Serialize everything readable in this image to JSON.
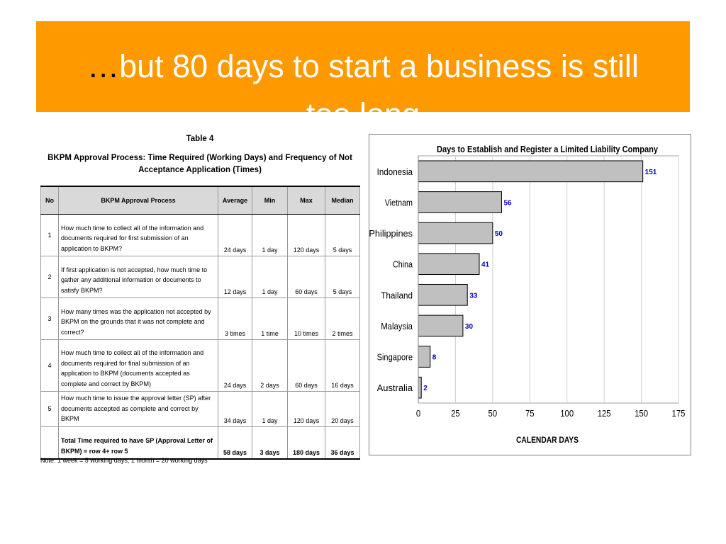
{
  "slide": {
    "title_ellipsis": "…",
    "title_line1": "but 80 days to start a business is still",
    "title_line2": "too long"
  },
  "table": {
    "caption_num": "Table 4",
    "caption": "BKPM Approval Process: Time Required (Working Days) and Frequency of Not Acceptance Application (Times)",
    "headers": {
      "no": "No",
      "process": "BKPM Approval Process",
      "average": "Average",
      "min": "Min",
      "max": "Max",
      "median": "Median"
    },
    "rows": [
      {
        "no": "1",
        "process": "How much time to collect all of the information and documents required for first submission of an application to BKPM?",
        "average": "24 days",
        "min": "1 day",
        "max": "120 days",
        "median": "5 days"
      },
      {
        "no": "2",
        "process": "If first application is not accepted, how much time to gather any additional information or documents to satisfy BKPM?",
        "average": "12 days",
        "min": "1 day",
        "max": "60 days",
        "median": "5 days"
      },
      {
        "no": "3",
        "process": "How many times was the application not accepted by BKPM on the grounds that it was not complete and correct?",
        "average": "3 times",
        "min": "1 time",
        "max": "10 times",
        "median": "2 times"
      },
      {
        "no": "4",
        "process": "How much time to collect all of the information and documents required for final submission of an application to BKPM (documents accepted as complete and correct by BKPM)",
        "average": "24 days",
        "min": "2 days",
        "max": "60 days",
        "median": "16 days"
      },
      {
        "no": "5",
        "process": "How much time to issue the approval letter (SP) after documents accepted as complete and correct by BKPM",
        "average": "34 days",
        "min": "1 day",
        "max": "120 days",
        "median": "20 days"
      }
    ],
    "total": {
      "no": "",
      "process": "Total Time required to have SP (Approval Letter of BKPM) = row 4+ row 5",
      "average": "58 days",
      "min": "3 days",
      "max": "180 days",
      "median": "36 days"
    },
    "note": "Note: 1 week = 5 working days, 1 month = 20 working days"
  },
  "chart_data": {
    "type": "bar",
    "orientation": "horizontal",
    "title": "Days to Establish and Register a Limited Liability Company",
    "xlabel": "CALENDAR  DAYS",
    "ylabel": "",
    "categories": [
      "Indonesia",
      "Vietnam",
      "Philippines",
      "China",
      "Thailand",
      "Malaysia",
      "Singapore",
      "Australia"
    ],
    "values": [
      151,
      56,
      50,
      41,
      33,
      30,
      8,
      2
    ],
    "xlim": [
      0,
      175
    ],
    "xticks": [
      0,
      25,
      50,
      75,
      100,
      125,
      150,
      175
    ],
    "grid": "vertical",
    "data_labels": true,
    "colors": {
      "bar": "#c0c0c0",
      "bar_border": "#000000",
      "label": "#0000cc",
      "grid": "#cfcfcf"
    }
  }
}
